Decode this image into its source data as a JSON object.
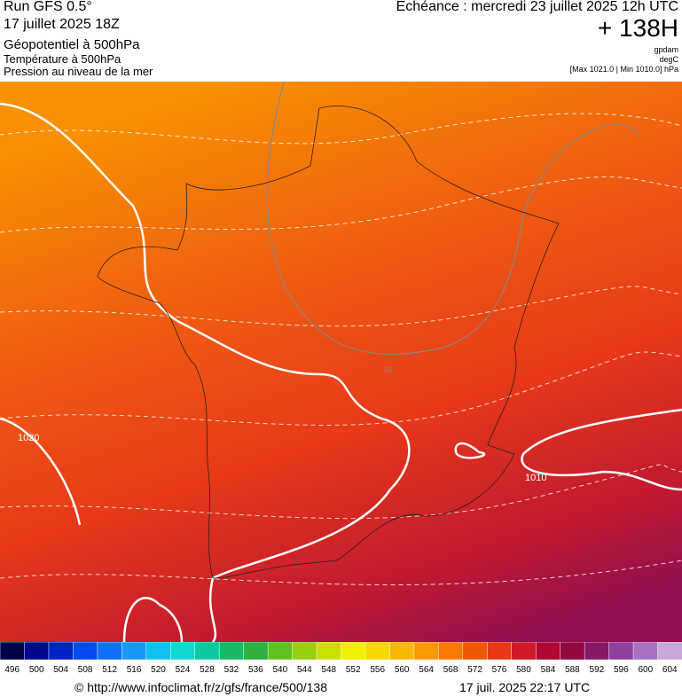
{
  "header": {
    "model": "Run GFS 0.5°",
    "run": "17 juillet 2025 18Z",
    "field": "Géopotentiel à 500hPa",
    "field2": "Température à 500hPa",
    "field3": "Pression au niveau de la mer",
    "valid": "Echéance : mercredi 23 juillet 2025 12h UTC",
    "lead": "+ 138H",
    "unit1": "gpdam",
    "unit2": "degC",
    "pressure_range": "[Max 1021.0 | Min 1010.0] hPa"
  },
  "map": {
    "contour_labels": [
      "1020",
      "1010",
      "16"
    ]
  },
  "scale": {
    "values": [
      496,
      500,
      504,
      508,
      512,
      516,
      520,
      524,
      528,
      532,
      536,
      540,
      544,
      548,
      552,
      556,
      560,
      564,
      568,
      572,
      576,
      580,
      584,
      588,
      592,
      596,
      600,
      604
    ],
    "colors": [
      "#00004a",
      "#000890",
      "#0020c8",
      "#0848f0",
      "#1070f8",
      "#1898f8",
      "#10c0f0",
      "#10d8d0",
      "#10c8a0",
      "#18b868",
      "#30b040",
      "#60c020",
      "#98d010",
      "#c8e000",
      "#f0f000",
      "#f8d800",
      "#f8b800",
      "#f89800",
      "#f87800",
      "#f05800",
      "#e83818",
      "#d01828",
      "#b00830",
      "#900840",
      "#881868",
      "#9040a0",
      "#a870c0",
      "#c8a8d8"
    ]
  },
  "footer": {
    "url": "© http://www.infoclimat.fr/z/gfs/france/500/138",
    "date": "17 juil. 2025 22:17 UTC"
  }
}
